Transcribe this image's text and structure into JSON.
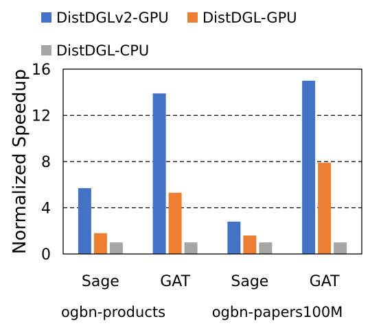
{
  "chart_data": {
    "type": "bar",
    "title": "",
    "xlabel": "",
    "ylabel": "Normalized Speedup",
    "ylim": [
      0,
      16
    ],
    "yticks": [
      0,
      4,
      8,
      12,
      16
    ],
    "grid": "dashed horizontal",
    "legend_position": "top",
    "categories": [
      "Sage",
      "GAT",
      "Sage",
      "GAT"
    ],
    "groups": [
      {
        "label": "ogbn-products",
        "categories": [
          "Sage",
          "GAT"
        ]
      },
      {
        "label": "ogbn-papers100M",
        "categories": [
          "Sage",
          "GAT"
        ]
      }
    ],
    "series": [
      {
        "name": "DistDGLv2-GPU",
        "color": "#4472C4",
        "values": [
          5.7,
          13.9,
          2.8,
          15.0
        ]
      },
      {
        "name": "DistDGL-GPU",
        "color": "#ED7D31",
        "values": [
          1.8,
          5.3,
          1.6,
          7.9
        ]
      },
      {
        "name": "DistDGL-CPU",
        "color": "#A5A5A5",
        "values": [
          1.0,
          1.0,
          1.0,
          1.0
        ]
      }
    ]
  }
}
